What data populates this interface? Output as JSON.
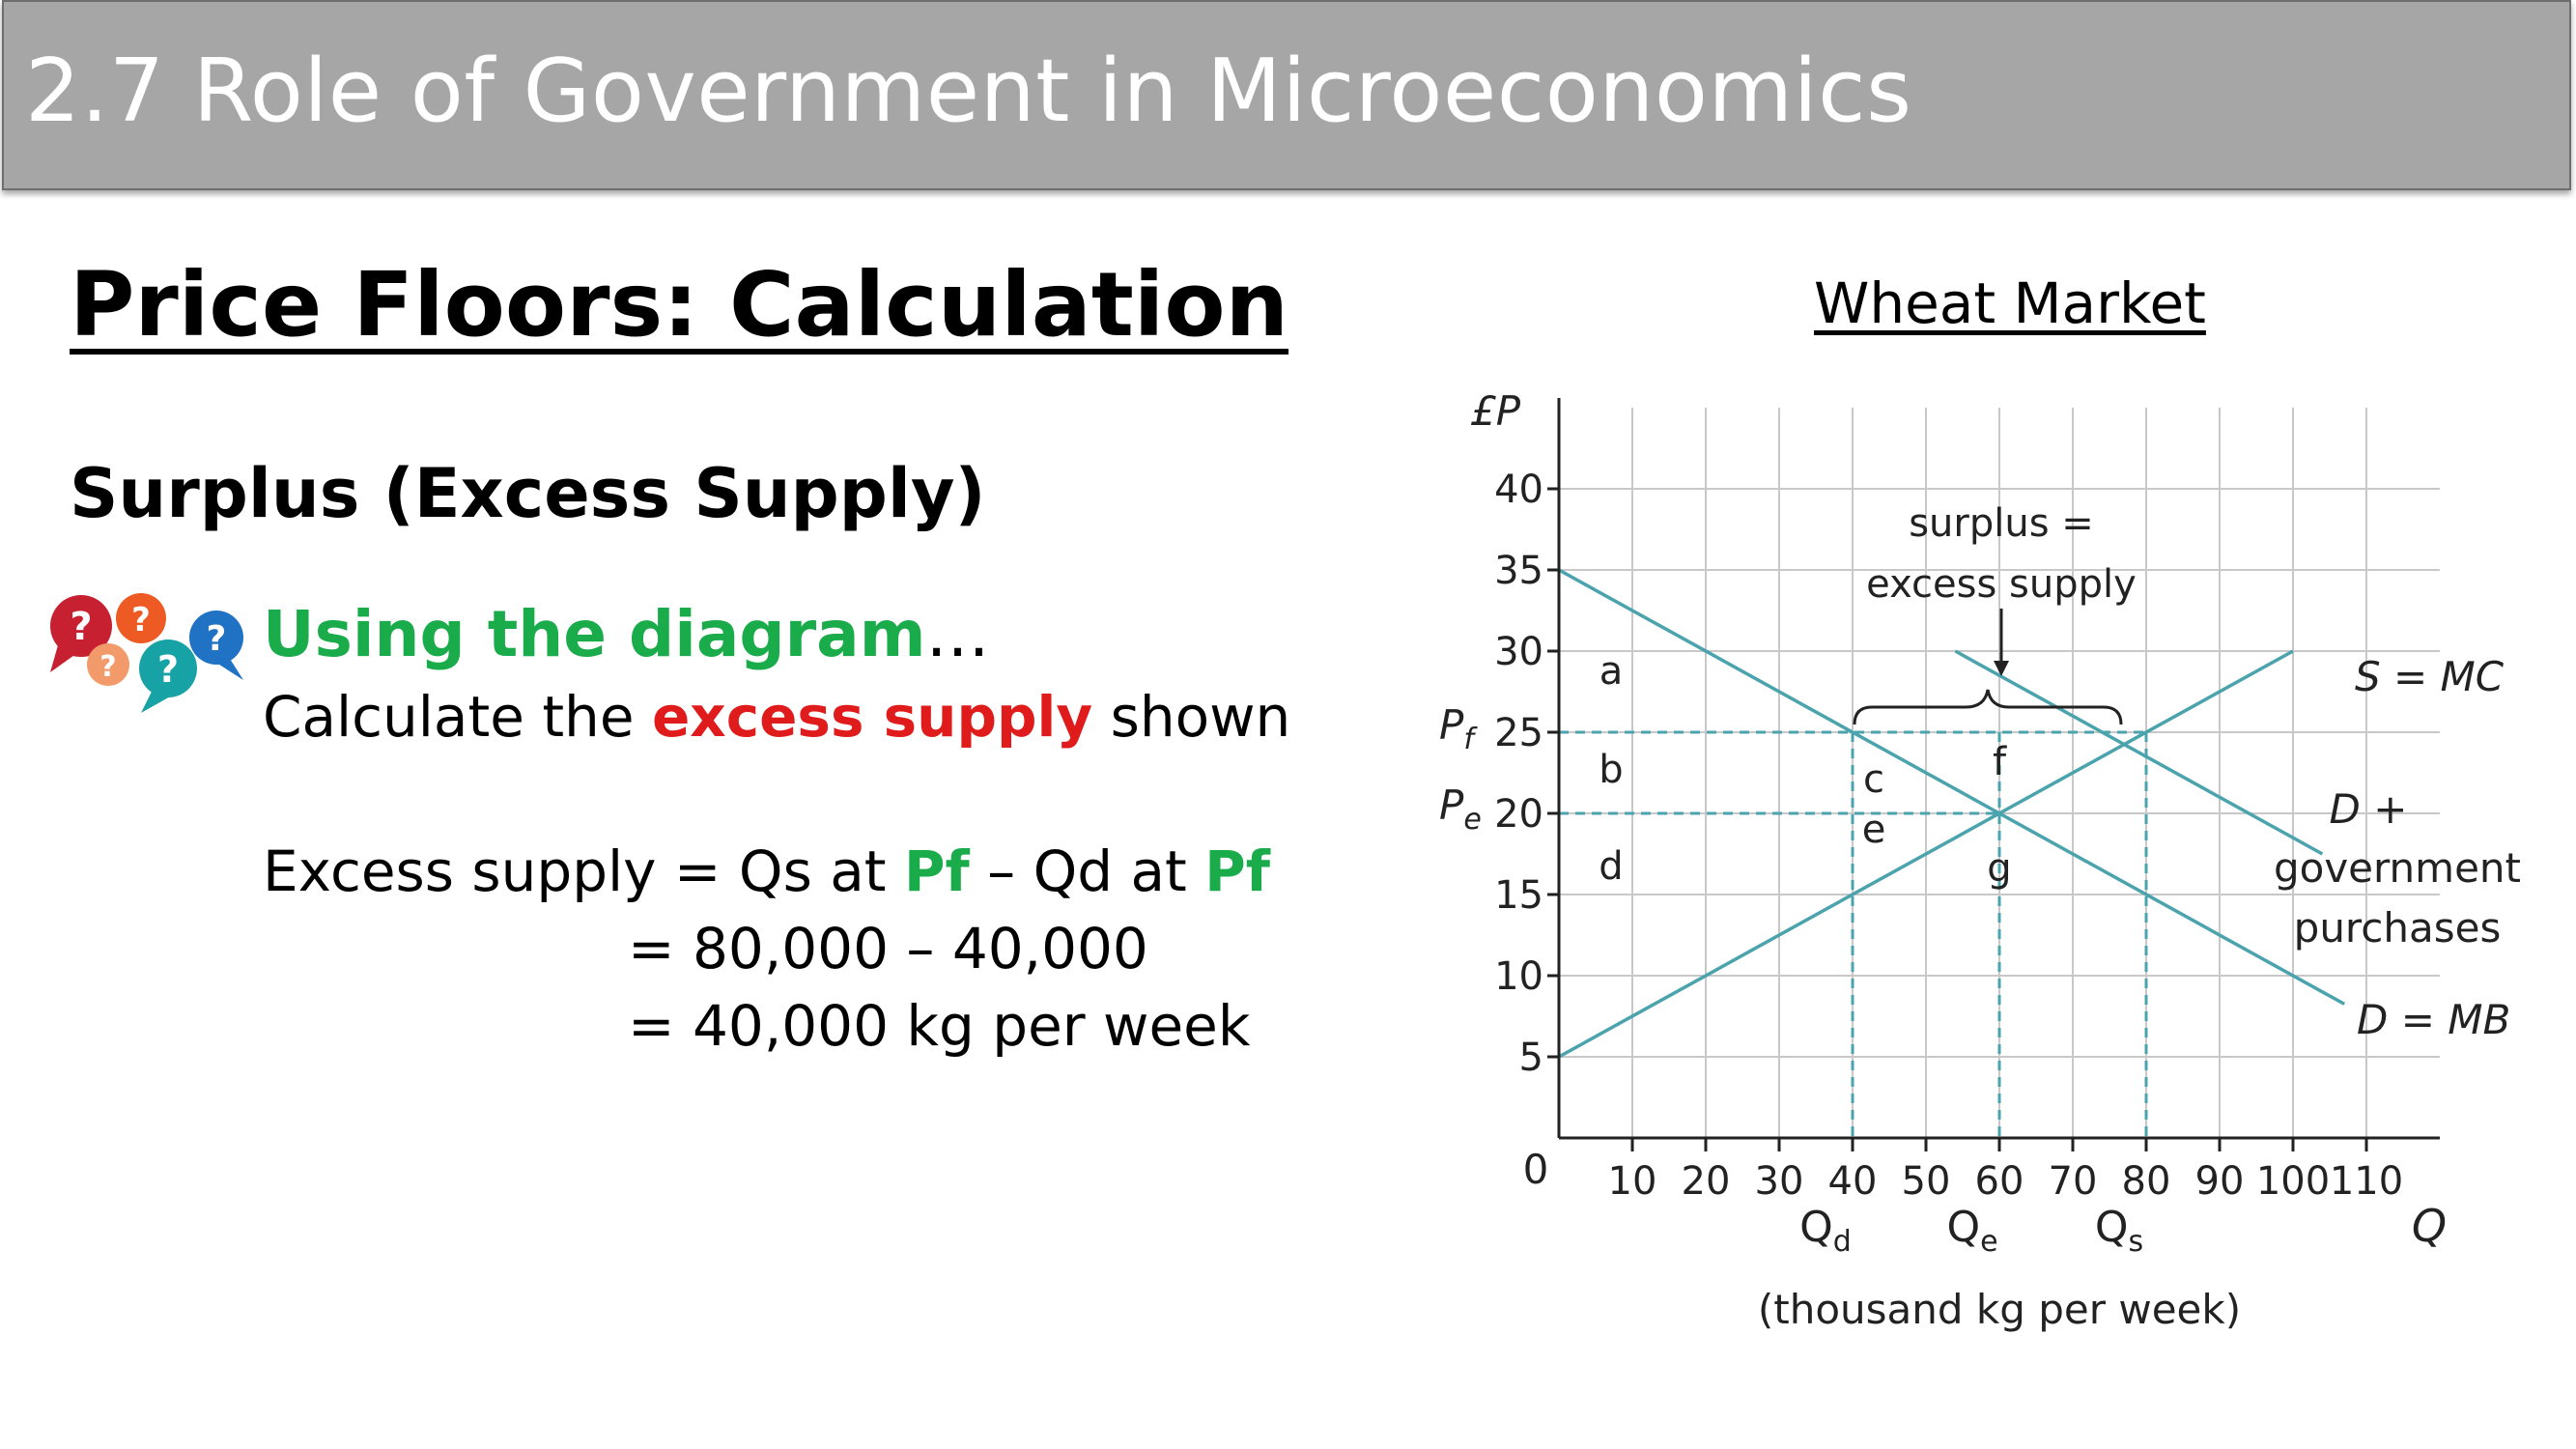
{
  "header": {
    "title": "2.7 Role of Government in Microeconomics"
  },
  "slide": {
    "heading": "Price Floors: Calculation",
    "subheading": "Surplus (Excess Supply)",
    "prompt_main": "Using the diagram",
    "prompt_dots": "…",
    "instruction": {
      "pre": "Calculate the ",
      "emph": "excess supply",
      "post": " shown"
    },
    "calc": {
      "line1_pre": "Excess supply = Qs at ",
      "pf1": "Pf",
      "line1_mid": " – Qd at ",
      "pf2": "Pf",
      "line2": "= 80,000 – 40,000",
      "line3": "= 40,000 kg per week"
    }
  },
  "diagram": {
    "title": "Wheat Market",
    "y_axis_label": "£P",
    "x_axis_label": "Q",
    "x_unit_label": "(thousand kg per week)",
    "origin_label": "0",
    "y_ticks": [
      5,
      10,
      15,
      20,
      25,
      30,
      35,
      40
    ],
    "x_ticks": [
      10,
      20,
      30,
      40,
      50,
      60,
      70,
      80,
      90,
      100,
      110
    ],
    "price_labels": {
      "pf": "P",
      "pf_sub": "f",
      "pe": "P",
      "pe_sub": "e"
    },
    "qty_labels": {
      "qd": "Q",
      "qd_sub": "d",
      "qe": "Q",
      "qe_sub": "e",
      "qs": "Q",
      "qs_sub": "s"
    },
    "lines": {
      "supply": {
        "label": "S = MC",
        "points": [
          [
            0,
            5
          ],
          [
            100,
            30
          ]
        ]
      },
      "demand": {
        "label": "D = MB",
        "points": [
          [
            0,
            35
          ],
          [
            107,
            8.25
          ]
        ]
      },
      "demand_gov": {
        "label1": "D +",
        "label2": "government",
        "label3": "purchases",
        "points": [
          [
            54,
            30
          ],
          [
            104,
            17.5
          ]
        ]
      }
    },
    "floor_price": 25,
    "equilibrium": {
      "q": 60,
      "p": 20
    },
    "qd": 40,
    "qs": 80,
    "brace_label1": "surplus =",
    "brace_label2": "excess supply",
    "areas": {
      "a": "a",
      "b": "b",
      "c": "c",
      "d": "d",
      "e": "e",
      "f": "f",
      "g": "g"
    },
    "colors": {
      "curve": "#4aa3ad",
      "grid": "#c8c8c8",
      "axis": "#222222"
    }
  }
}
